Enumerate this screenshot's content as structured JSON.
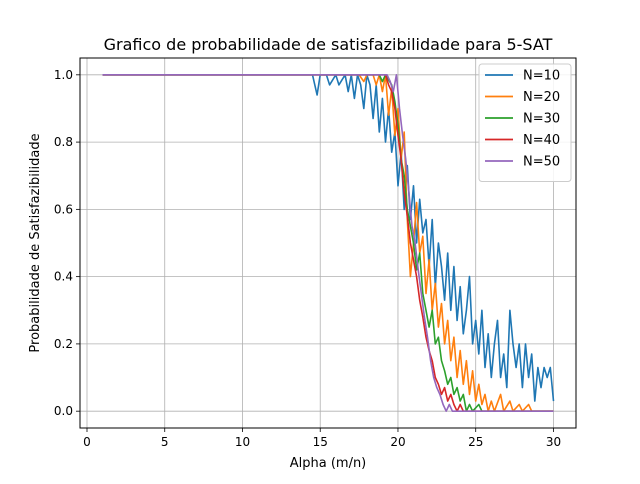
{
  "chart_data": {
    "type": "line",
    "title": "Grafico de probabilidade de satisfazibilidade para 5-SAT",
    "xlabel": "Alpha (m/n)",
    "ylabel": "Probabilidade de Satisfazibilidade",
    "xlim": [
      -0.45,
      31.45
    ],
    "ylim": [
      -0.05,
      1.05
    ],
    "xticks": [
      0,
      5,
      10,
      15,
      20,
      25,
      30
    ],
    "yticks": [
      0.0,
      0.2,
      0.4,
      0.6,
      0.8,
      1.0
    ],
    "xtick_labels": [
      "0",
      "5",
      "10",
      "15",
      "20",
      "25",
      "30"
    ],
    "ytick_labels": [
      "0.0",
      "0.2",
      "0.4",
      "0.6",
      "0.8",
      "1.0"
    ],
    "grid": true,
    "legend_position": "top-right",
    "series": [
      {
        "name": "N=10",
        "color": "#1f77b4",
        "points": [
          [
            1,
            1
          ],
          [
            14.5,
            1
          ],
          [
            14.8,
            0.94
          ],
          [
            15,
            1
          ],
          [
            15.4,
            1
          ],
          [
            15.6,
            0.97
          ],
          [
            16,
            1
          ],
          [
            16.2,
            0.97
          ],
          [
            16.6,
            1
          ],
          [
            16.8,
            0.95
          ],
          [
            17,
            1
          ],
          [
            17.2,
            0.93
          ],
          [
            17.4,
            1
          ],
          [
            17.6,
            0.97
          ],
          [
            17.8,
            0.9
          ],
          [
            18,
            1
          ],
          [
            18.2,
            0.97
          ],
          [
            18.4,
            0.87
          ],
          [
            18.6,
            0.97
          ],
          [
            18.8,
            0.83
          ],
          [
            19,
            0.93
          ],
          [
            19.2,
            0.8
          ],
          [
            19.4,
            0.9
          ],
          [
            19.6,
            0.77
          ],
          [
            19.8,
            0.83
          ],
          [
            20,
            0.67
          ],
          [
            20.2,
            0.77
          ],
          [
            20.4,
            0.6
          ],
          [
            20.6,
            0.73
          ],
          [
            20.8,
            0.57
          ],
          [
            21,
            0.67
          ],
          [
            21.2,
            0.5
          ],
          [
            21.4,
            0.63
          ],
          [
            21.6,
            0.53
          ],
          [
            21.8,
            0.57
          ],
          [
            22,
            0.43
          ],
          [
            22.2,
            0.57
          ],
          [
            22.4,
            0.37
          ],
          [
            22.6,
            0.5
          ],
          [
            22.8,
            0.43
          ],
          [
            23,
            0.33
          ],
          [
            23.2,
            0.47
          ],
          [
            23.4,
            0.3
          ],
          [
            23.6,
            0.43
          ],
          [
            23.8,
            0.27
          ],
          [
            24,
            0.37
          ],
          [
            24.2,
            0.23
          ],
          [
            24.4,
            0.3
          ],
          [
            24.6,
            0.4
          ],
          [
            24.8,
            0.2
          ],
          [
            25,
            0.27
          ],
          [
            25.2,
            0.17
          ],
          [
            25.4,
            0.3
          ],
          [
            25.6,
            0.13
          ],
          [
            25.8,
            0.23
          ],
          [
            26,
            0.1
          ],
          [
            26.2,
            0.2
          ],
          [
            26.4,
            0.27
          ],
          [
            26.6,
            0.1
          ],
          [
            26.8,
            0.17
          ],
          [
            27,
            0.07
          ],
          [
            27.2,
            0.3
          ],
          [
            27.4,
            0.2
          ],
          [
            27.6,
            0.13
          ],
          [
            27.8,
            0.2
          ],
          [
            28,
            0.07
          ],
          [
            28.2,
            0.2
          ],
          [
            28.4,
            0.1
          ],
          [
            28.6,
            0.17
          ],
          [
            28.8,
            0.03
          ],
          [
            29,
            0.13
          ],
          [
            29.2,
            0.07
          ],
          [
            29.4,
            0.13
          ],
          [
            29.6,
            0.1
          ],
          [
            29.8,
            0.13
          ],
          [
            30,
            0.03
          ]
        ]
      },
      {
        "name": "N=20",
        "color": "#ff7f0e",
        "points": [
          [
            1,
            1
          ],
          [
            17.5,
            1
          ],
          [
            17.8,
            0.98
          ],
          [
            18,
            1
          ],
          [
            18.4,
            1
          ],
          [
            18.6,
            0.97
          ],
          [
            18.8,
            1
          ],
          [
            19,
            0.95
          ],
          [
            19.2,
            1
          ],
          [
            19.4,
            0.88
          ],
          [
            19.6,
            0.96
          ],
          [
            19.8,
            0.82
          ],
          [
            20,
            0.9
          ],
          [
            20.2,
            0.75
          ],
          [
            20.4,
            0.83
          ],
          [
            20.6,
            0.57
          ],
          [
            20.8,
            0.4
          ],
          [
            21,
            0.5
          ],
          [
            21.2,
            0.62
          ],
          [
            21.4,
            0.47
          ],
          [
            21.6,
            0.52
          ],
          [
            21.8,
            0.35
          ],
          [
            22,
            0.45
          ],
          [
            22.2,
            0.3
          ],
          [
            22.4,
            0.38
          ],
          [
            22.6,
            0.25
          ],
          [
            22.8,
            0.32
          ],
          [
            23,
            0.2
          ],
          [
            23.2,
            0.27
          ],
          [
            23.4,
            0.15
          ],
          [
            23.6,
            0.22
          ],
          [
            23.8,
            0.1
          ],
          [
            24,
            0.18
          ],
          [
            24.2,
            0.08
          ],
          [
            24.4,
            0.15
          ],
          [
            24.6,
            0.05
          ],
          [
            24.8,
            0.12
          ],
          [
            25,
            0.03
          ],
          [
            25.2,
            0.08
          ],
          [
            25.4,
            0.02
          ],
          [
            25.6,
            0.05
          ],
          [
            25.8,
            0
          ],
          [
            26,
            0.03
          ],
          [
            26.2,
            0
          ],
          [
            26.6,
            0.05
          ],
          [
            26.8,
            0
          ],
          [
            27.2,
            0.03
          ],
          [
            27.4,
            0
          ],
          [
            27.8,
            0.02
          ],
          [
            28,
            0
          ],
          [
            28.4,
            0.02
          ],
          [
            28.6,
            0
          ],
          [
            30,
            0
          ]
        ]
      },
      {
        "name": "N=30",
        "color": "#2ca02c",
        "points": [
          [
            1,
            1
          ],
          [
            18.8,
            1
          ],
          [
            19,
            0.98
          ],
          [
            19.2,
            1
          ],
          [
            19.6,
            0.97
          ],
          [
            19.8,
            0.92
          ],
          [
            20,
            0.85
          ],
          [
            20.2,
            0.75
          ],
          [
            20.4,
            0.7
          ],
          [
            20.6,
            0.6
          ],
          [
            20.8,
            0.55
          ],
          [
            21,
            0.5
          ],
          [
            21.2,
            0.42
          ],
          [
            21.4,
            0.47
          ],
          [
            21.6,
            0.35
          ],
          [
            21.8,
            0.3
          ],
          [
            22,
            0.25
          ],
          [
            22.2,
            0.3
          ],
          [
            22.4,
            0.2
          ],
          [
            22.6,
            0.22
          ],
          [
            22.8,
            0.15
          ],
          [
            23,
            0.12
          ],
          [
            23.2,
            0.08
          ],
          [
            23.4,
            0.1
          ],
          [
            23.6,
            0.05
          ],
          [
            23.8,
            0.07
          ],
          [
            24,
            0.03
          ],
          [
            24.2,
            0.05
          ],
          [
            24.4,
            0
          ],
          [
            24.6,
            0.02
          ],
          [
            24.8,
            0
          ],
          [
            25.2,
            0.02
          ],
          [
            25.4,
            0
          ],
          [
            30,
            0
          ]
        ]
      },
      {
        "name": "N=40",
        "color": "#d62728",
        "points": [
          [
            1,
            1
          ],
          [
            19.2,
            1
          ],
          [
            19.4,
            0.97
          ],
          [
            19.6,
            0.95
          ],
          [
            19.8,
            0.9
          ],
          [
            20,
            0.82
          ],
          [
            20.2,
            0.75
          ],
          [
            20.4,
            0.65
          ],
          [
            20.6,
            0.58
          ],
          [
            20.8,
            0.5
          ],
          [
            21,
            0.45
          ],
          [
            21.2,
            0.4
          ],
          [
            21.4,
            0.33
          ],
          [
            21.6,
            0.28
          ],
          [
            21.8,
            0.22
          ],
          [
            22,
            0.18
          ],
          [
            22.2,
            0.15
          ],
          [
            22.4,
            0.1
          ],
          [
            22.6,
            0.08
          ],
          [
            22.8,
            0.05
          ],
          [
            23,
            0.07
          ],
          [
            23.2,
            0.03
          ],
          [
            23.4,
            0.05
          ],
          [
            23.6,
            0.02
          ],
          [
            23.8,
            0
          ],
          [
            24,
            0.02
          ],
          [
            24.2,
            0
          ],
          [
            30,
            0
          ]
        ]
      },
      {
        "name": "N=50",
        "color": "#9467bd",
        "points": [
          [
            1,
            1
          ],
          [
            19.3,
            1
          ],
          [
            19.5,
            0.98
          ],
          [
            19.7,
            0.95
          ],
          [
            19.9,
            1
          ],
          [
            20.1,
            0.9
          ],
          [
            20.3,
            0.82
          ],
          [
            20.5,
            0.75
          ],
          [
            20.7,
            0.65
          ],
          [
            20.9,
            0.55
          ],
          [
            21.1,
            0.5
          ],
          [
            21.3,
            0.42
          ],
          [
            21.5,
            0.35
          ],
          [
            21.7,
            0.28
          ],
          [
            21.9,
            0.22
          ],
          [
            22.1,
            0.15
          ],
          [
            22.3,
            0.1
          ],
          [
            22.5,
            0.07
          ],
          [
            22.7,
            0.05
          ],
          [
            22.9,
            0.02
          ],
          [
            23.1,
            0
          ],
          [
            23.3,
            0.02
          ],
          [
            23.5,
            0
          ],
          [
            30,
            0
          ]
        ]
      }
    ]
  }
}
